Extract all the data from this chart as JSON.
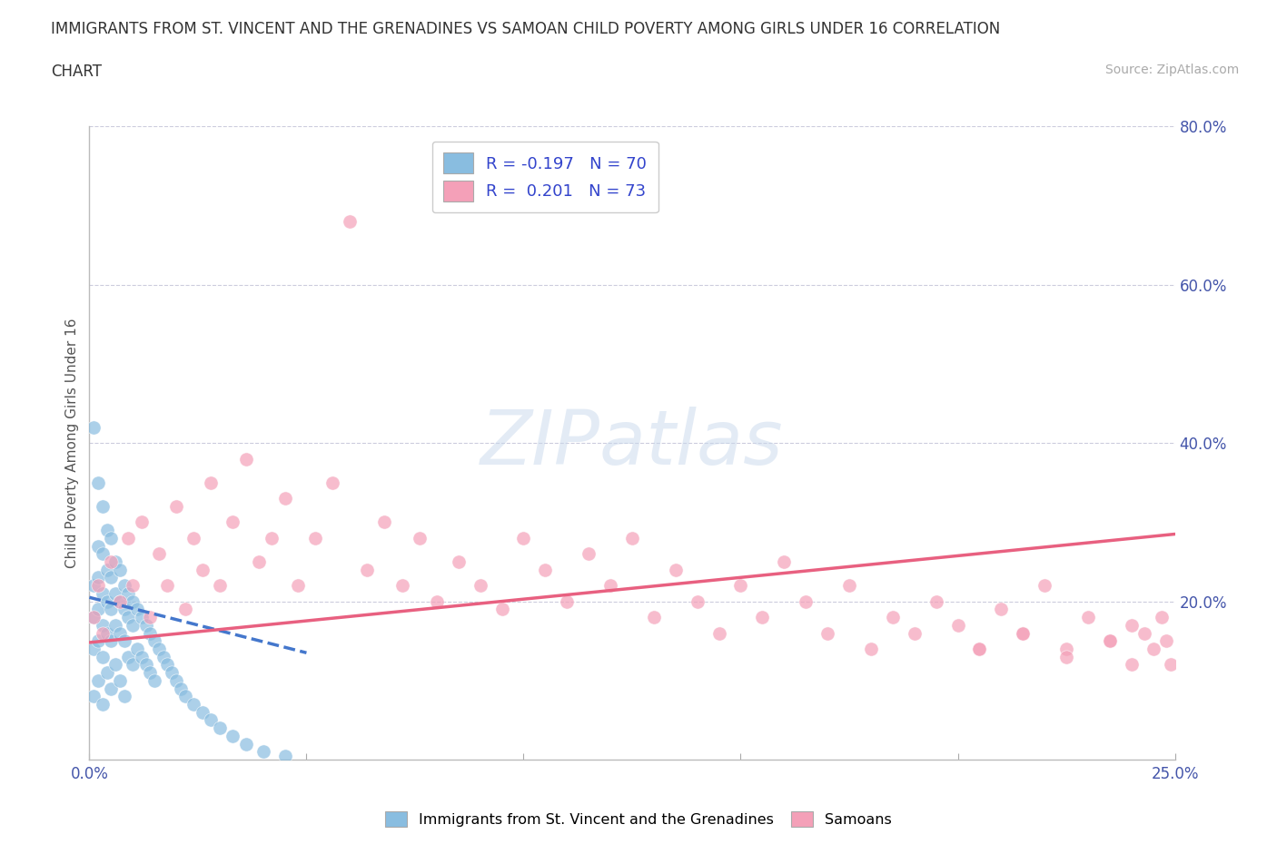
{
  "title_line1": "IMMIGRANTS FROM ST. VINCENT AND THE GRENADINES VS SAMOAN CHILD POVERTY AMONG GIRLS UNDER 16 CORRELATION",
  "title_line2": "CHART",
  "source_text": "Source: ZipAtlas.com",
  "ylabel": "Child Poverty Among Girls Under 16",
  "xlim": [
    0.0,
    0.25
  ],
  "ylim": [
    0.0,
    0.8
  ],
  "xticks": [
    0.0,
    0.05,
    0.1,
    0.15,
    0.2,
    0.25
  ],
  "xticklabels": [
    "0.0%",
    "",
    "",
    "",
    "",
    "25.0%"
  ],
  "yticks_right": [
    0.0,
    0.2,
    0.4,
    0.6,
    0.8
  ],
  "yticklabels_right": [
    "",
    "20.0%",
    "40.0%",
    "60.0%",
    "80.0%"
  ],
  "blue_R": -0.197,
  "blue_N": 70,
  "pink_R": 0.201,
  "pink_N": 73,
  "blue_color": "#89bde0",
  "pink_color": "#f4a0b8",
  "blue_line_color": "#4477cc",
  "pink_line_color": "#e86080",
  "legend_label_blue": "Immigrants from St. Vincent and the Grenadines",
  "legend_label_pink": "Samoans",
  "blue_scatter_x": [
    0.001,
    0.001,
    0.001,
    0.001,
    0.001,
    0.002,
    0.002,
    0.002,
    0.002,
    0.002,
    0.002,
    0.003,
    0.003,
    0.003,
    0.003,
    0.003,
    0.003,
    0.004,
    0.004,
    0.004,
    0.004,
    0.004,
    0.005,
    0.005,
    0.005,
    0.005,
    0.005,
    0.006,
    0.006,
    0.006,
    0.006,
    0.007,
    0.007,
    0.007,
    0.007,
    0.008,
    0.008,
    0.008,
    0.008,
    0.009,
    0.009,
    0.009,
    0.01,
    0.01,
    0.01,
    0.011,
    0.011,
    0.012,
    0.012,
    0.013,
    0.013,
    0.014,
    0.014,
    0.015,
    0.015,
    0.016,
    0.017,
    0.018,
    0.019,
    0.02,
    0.021,
    0.022,
    0.024,
    0.026,
    0.028,
    0.03,
    0.033,
    0.036,
    0.04,
    0.045
  ],
  "blue_scatter_y": [
    0.42,
    0.22,
    0.18,
    0.14,
    0.08,
    0.35,
    0.27,
    0.23,
    0.19,
    0.15,
    0.1,
    0.32,
    0.26,
    0.21,
    0.17,
    0.13,
    0.07,
    0.29,
    0.24,
    0.2,
    0.16,
    0.11,
    0.28,
    0.23,
    0.19,
    0.15,
    0.09,
    0.25,
    0.21,
    0.17,
    0.12,
    0.24,
    0.2,
    0.16,
    0.1,
    0.22,
    0.19,
    0.15,
    0.08,
    0.21,
    0.18,
    0.13,
    0.2,
    0.17,
    0.12,
    0.19,
    0.14,
    0.18,
    0.13,
    0.17,
    0.12,
    0.16,
    0.11,
    0.15,
    0.1,
    0.14,
    0.13,
    0.12,
    0.11,
    0.1,
    0.09,
    0.08,
    0.07,
    0.06,
    0.05,
    0.04,
    0.03,
    0.02,
    0.01,
    0.005
  ],
  "pink_scatter_x": [
    0.001,
    0.002,
    0.003,
    0.005,
    0.007,
    0.009,
    0.01,
    0.012,
    0.014,
    0.016,
    0.018,
    0.02,
    0.022,
    0.024,
    0.026,
    0.028,
    0.03,
    0.033,
    0.036,
    0.039,
    0.042,
    0.045,
    0.048,
    0.052,
    0.056,
    0.06,
    0.064,
    0.068,
    0.072,
    0.076,
    0.08,
    0.085,
    0.09,
    0.095,
    0.1,
    0.105,
    0.11,
    0.115,
    0.12,
    0.125,
    0.13,
    0.135,
    0.14,
    0.145,
    0.15,
    0.155,
    0.16,
    0.165,
    0.17,
    0.175,
    0.18,
    0.185,
    0.19,
    0.195,
    0.2,
    0.205,
    0.21,
    0.215,
    0.22,
    0.225,
    0.23,
    0.235,
    0.24,
    0.243,
    0.245,
    0.247,
    0.248,
    0.249,
    0.24,
    0.235,
    0.225,
    0.215,
    0.205
  ],
  "pink_scatter_y": [
    0.18,
    0.22,
    0.16,
    0.25,
    0.2,
    0.28,
    0.22,
    0.3,
    0.18,
    0.26,
    0.22,
    0.32,
    0.19,
    0.28,
    0.24,
    0.35,
    0.22,
    0.3,
    0.38,
    0.25,
    0.28,
    0.33,
    0.22,
    0.28,
    0.35,
    0.68,
    0.24,
    0.3,
    0.22,
    0.28,
    0.2,
    0.25,
    0.22,
    0.19,
    0.28,
    0.24,
    0.2,
    0.26,
    0.22,
    0.28,
    0.18,
    0.24,
    0.2,
    0.16,
    0.22,
    0.18,
    0.25,
    0.2,
    0.16,
    0.22,
    0.14,
    0.18,
    0.16,
    0.2,
    0.17,
    0.14,
    0.19,
    0.16,
    0.22,
    0.14,
    0.18,
    0.15,
    0.12,
    0.16,
    0.14,
    0.18,
    0.15,
    0.12,
    0.17,
    0.15,
    0.13,
    0.16,
    0.14
  ]
}
